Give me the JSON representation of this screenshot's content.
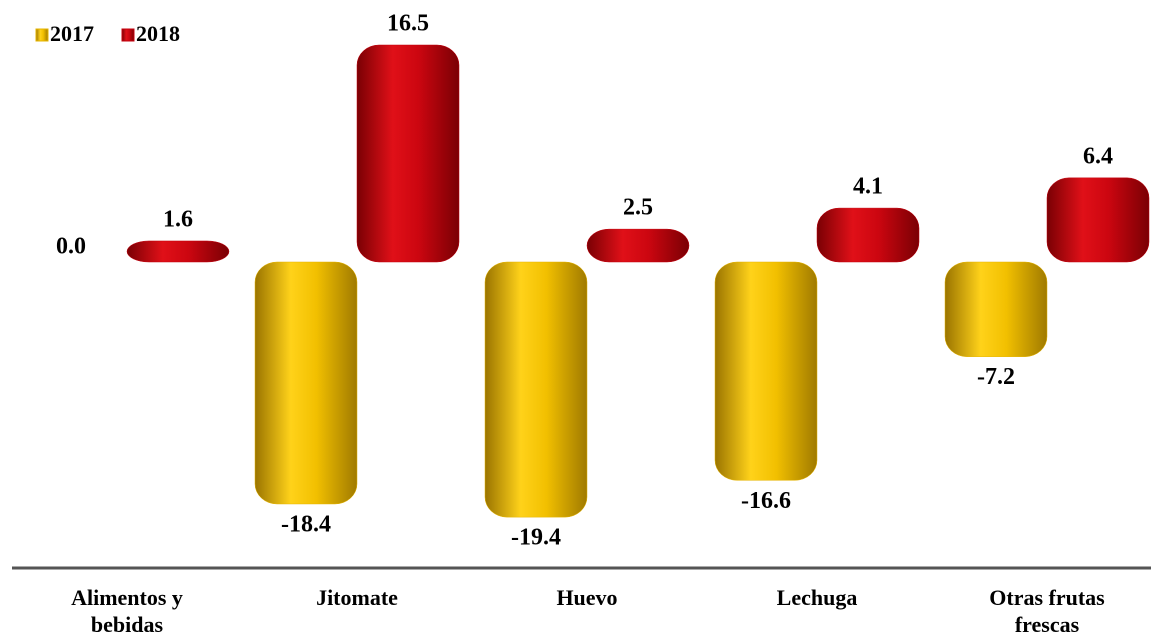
{
  "chart_data": {
    "type": "bar",
    "categories": [
      "Alimentos y bebidas",
      "Jitomate",
      "Huevo",
      "Lechuga",
      "Otras frutas frescas"
    ],
    "series": [
      {
        "name": "2017",
        "color": "#e6b400",
        "values": [
          0.0,
          -18.4,
          -19.4,
          -16.6,
          -7.2
        ],
        "value_labels": [
          "0.0",
          "-18.4",
          "-19.4",
          "-16.6",
          "-7.2"
        ]
      },
      {
        "name": "2018",
        "color": "#c4000c",
        "values": [
          1.6,
          16.5,
          2.5,
          4.1,
          6.4
        ],
        "value_labels": [
          "1.6",
          "16.5",
          "2.5",
          "4.1",
          "6.4"
        ]
      }
    ],
    "legend": "top-left"
  }
}
